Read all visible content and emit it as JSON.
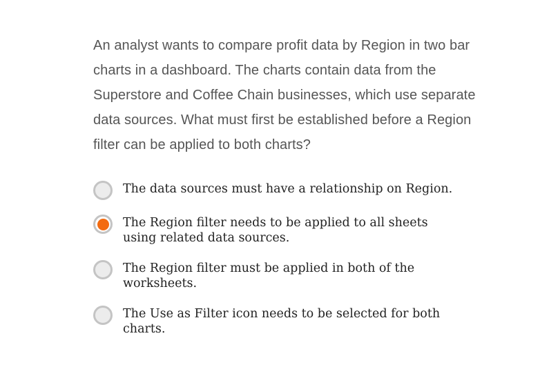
{
  "question": {
    "text": "An analyst wants to compare profit data by Region in two bar charts in a dashboard. The charts contain data from the Superstore and Coffee Chain businesses, which use separate data sources. What must first be established before a Region filter can be applied to both charts?"
  },
  "options": [
    {
      "label": "The data sources must have a relationship on Region.",
      "selected": false
    },
    {
      "label": "The Region filter needs to be applied to all sheets using related data sources.",
      "selected": true
    },
    {
      "label": "The Region filter must be applied in both of the worksheets.",
      "selected": false
    },
    {
      "label": "The Use as Filter icon needs to be selected for both charts.",
      "selected": false
    }
  ],
  "colors": {
    "accent": "#f36b10",
    "radio_border": "#c4c4c4",
    "radio_fill": "#ececec",
    "question_text": "#555555",
    "option_text": "#222222"
  }
}
